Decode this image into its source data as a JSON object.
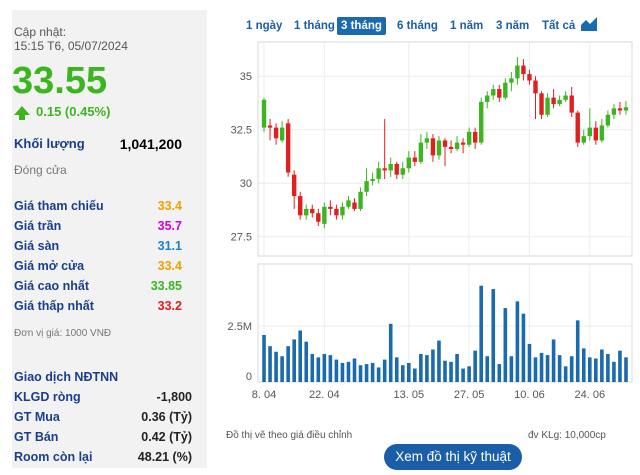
{
  "summary": {
    "updated_label": "Cập nhật:",
    "updated_time": "15:15 T6, 05/07/2024",
    "price": "33.55",
    "change": "0.15 (0.45%)",
    "volume_label": "Khối lượng",
    "volume_value": "1,041,200",
    "status": "Đóng cửa"
  },
  "prices": [
    {
      "label": "Giá tham chiếu",
      "value": "33.4",
      "color": "#f0a000"
    },
    {
      "label": "Giá trần",
      "value": "35.7",
      "color": "#d200d2"
    },
    {
      "label": "Giá sàn",
      "value": "31.1",
      "color": "#1a7fd0"
    },
    {
      "label": "Giá mở cửa",
      "value": "33.4",
      "color": "#f0a000"
    },
    {
      "label": "Giá cao nhất",
      "value": "33.85",
      "color": "#3cb521"
    },
    {
      "label": "Giá thấp nhất",
      "value": "33.2",
      "color": "#e02020"
    }
  ],
  "unit_note": "Đơn vị giá: 1000 VNĐ",
  "foreign": {
    "title": "Giao dịch NĐTNN",
    "rows": [
      {
        "label": "KLGD ròng",
        "value": "-1,800"
      },
      {
        "label": "GT Mua",
        "value": "0.36 (Tỷ)"
      },
      {
        "label": "GT Bán",
        "value": "0.42 (Tỷ)"
      },
      {
        "label": "Room còn lại",
        "value": "48.21 (%)"
      }
    ]
  },
  "tabs": [
    "1 ngày",
    "1 tháng",
    "3 tháng",
    "6 tháng",
    "1 năm",
    "3 năm",
    "Tất cả"
  ],
  "active_tab": 2,
  "colors": {
    "up": "#3cb521",
    "down": "#e02020",
    "volume": "#1a6aaf",
    "accent": "#1a5ea8"
  },
  "chart_data": {
    "type": "candlestick",
    "price_axis_ticks": [
      "35",
      "32.5",
      "30",
      "27.5"
    ],
    "ylim": [
      26.6,
      36.6
    ],
    "volume_axis_ticks": [
      "2.5M",
      "0"
    ],
    "volume_ylim": [
      0,
      5000000
    ],
    "x_tick_labels": [
      "8. 04",
      "22. 04",
      "13. 05",
      "27. 05",
      "10. 06",
      "24. 06"
    ],
    "x_tick_index": [
      0,
      10,
      24,
      34,
      44,
      54
    ],
    "candles": [
      [
        32.6,
        33.9,
        34.0,
        32.4
      ],
      [
        32.7,
        32.6,
        33.0,
        32.0
      ],
      [
        32.6,
        32.1,
        32.8,
        31.8
      ],
      [
        32.0,
        32.6,
        32.9,
        31.9
      ],
      [
        32.8,
        30.5,
        33.0,
        30.3
      ],
      [
        30.4,
        29.4,
        30.6,
        28.8
      ],
      [
        29.4,
        28.5,
        29.6,
        28.3
      ],
      [
        28.5,
        28.8,
        29.0,
        28.3
      ],
      [
        28.8,
        28.6,
        29.0,
        28.4
      ],
      [
        28.6,
        28.2,
        28.8,
        28.0
      ],
      [
        28.1,
        28.9,
        29.1,
        27.9
      ],
      [
        28.9,
        28.8,
        29.2,
        28.5
      ],
      [
        28.8,
        28.5,
        29.0,
        28.3
      ],
      [
        28.5,
        28.9,
        29.1,
        28.3
      ],
      [
        28.9,
        29.2,
        29.4,
        28.8
      ],
      [
        29.1,
        28.8,
        29.3,
        28.7
      ],
      [
        28.8,
        29.6,
        29.8,
        28.7
      ],
      [
        29.6,
        30.1,
        30.7,
        29.4
      ],
      [
        30.1,
        30.2,
        30.5,
        29.9
      ],
      [
        30.2,
        30.7,
        31.0,
        30.0
      ],
      [
        30.7,
        30.6,
        33.0,
        30.2
      ],
      [
        30.6,
        30.9,
        31.2,
        30.3
      ],
      [
        30.9,
        30.4,
        31.0,
        30.2
      ],
      [
        30.4,
        30.7,
        31.0,
        30.2
      ],
      [
        30.7,
        31.2,
        31.5,
        30.5
      ],
      [
        31.2,
        31.0,
        31.5,
        30.8
      ],
      [
        31.0,
        31.9,
        32.3,
        30.9
      ],
      [
        31.9,
        32.1,
        32.4,
        31.6
      ],
      [
        32.1,
        31.3,
        32.3,
        31.0
      ],
      [
        31.3,
        32.0,
        32.2,
        31.1
      ],
      [
        32.0,
        31.7,
        32.1,
        30.8
      ],
      [
        31.7,
        31.6,
        32.0,
        31.4
      ],
      [
        31.6,
        31.9,
        32.2,
        31.5
      ],
      [
        31.9,
        31.8,
        32.1,
        31.4
      ],
      [
        31.8,
        32.4,
        32.6,
        31.7
      ],
      [
        32.4,
        31.9,
        32.6,
        31.6
      ],
      [
        31.9,
        33.8,
        34.0,
        31.8
      ],
      [
        33.8,
        34.1,
        34.3,
        33.5
      ],
      [
        34.1,
        34.4,
        34.6,
        33.9
      ],
      [
        34.4,
        34.0,
        34.6,
        33.8
      ],
      [
        34.0,
        34.7,
        34.9,
        33.9
      ],
      [
        34.7,
        34.9,
        35.2,
        34.3
      ],
      [
        34.9,
        35.5,
        35.9,
        34.6
      ],
      [
        35.5,
        35.1,
        35.8,
        34.8
      ],
      [
        35.1,
        34.8,
        35.3,
        34.6
      ],
      [
        34.8,
        34.2,
        35.0,
        33.0
      ],
      [
        34.2,
        33.2,
        34.3,
        33.0
      ],
      [
        33.2,
        34.0,
        34.2,
        33.1
      ],
      [
        34.0,
        33.7,
        34.4,
        33.5
      ],
      [
        33.7,
        33.9,
        34.1,
        33.6
      ],
      [
        33.9,
        34.1,
        34.3,
        33.8
      ],
      [
        34.1,
        33.3,
        34.5,
        33.1
      ],
      [
        33.3,
        31.9,
        33.4,
        31.7
      ],
      [
        31.9,
        32.2,
        32.5,
        31.8
      ],
      [
        32.2,
        32.6,
        33.5,
        32.0
      ],
      [
        32.6,
        32.0,
        32.9,
        31.8
      ],
      [
        32.0,
        32.7,
        33.0,
        31.9
      ],
      [
        32.7,
        33.2,
        33.4,
        32.6
      ],
      [
        33.2,
        33.5,
        33.7,
        33.0
      ],
      [
        33.5,
        33.4,
        33.8,
        33.2
      ],
      [
        33.4,
        33.55,
        33.85,
        33.2
      ]
    ],
    "volumes": [
      2100000,
      1600000,
      1350000,
      1150000,
      1600000,
      1900000,
      2300000,
      1800000,
      1250000,
      1100000,
      1250000,
      1200000,
      1000000,
      850000,
      900000,
      1050000,
      750000,
      800000,
      850000,
      650000,
      1000000,
      2600000,
      1100000,
      750000,
      850000,
      600000,
      1250000,
      1200000,
      1450000,
      1850000,
      950000,
      900000,
      1250000,
      600000,
      700000,
      1400000,
      4300000,
      1150000,
      4150000,
      800000,
      3300000,
      1150000,
      3600000,
      3050000,
      1700000,
      1100000,
      1300000,
      1200000,
      1900000,
      1200000,
      700000,
      1150000,
      2750000,
      1500000,
      1100000,
      1050000,
      1450000,
      1250000,
      900000,
      1400000,
      1100000
    ]
  },
  "footer": {
    "note_left": "Đồ thị vẽ theo giá điều chỉnh",
    "note_right": "đv KLg: 10,000cp",
    "button": "Xem đồ thị kỹ thuật"
  }
}
